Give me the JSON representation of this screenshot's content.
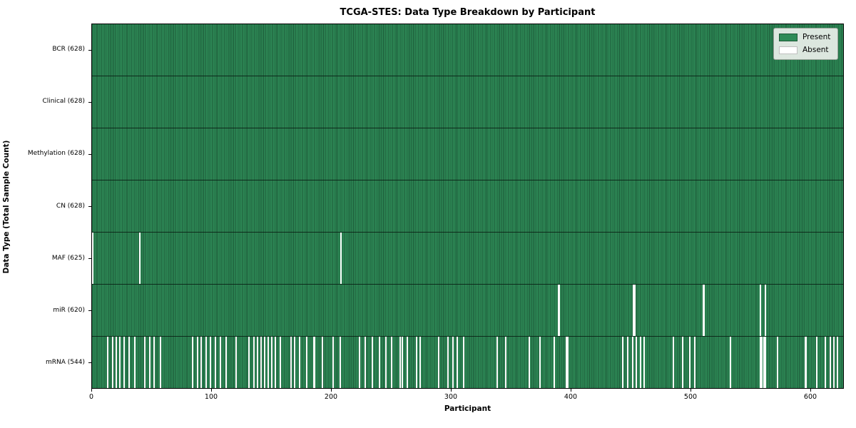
{
  "chart_data": {
    "type": "heatmap",
    "title": "TCGA-STES: Data Type Breakdown by Participant",
    "xlabel": "Participant",
    "ylabel": "Data Type (Total Sample Count)",
    "x_ticks": [
      0,
      100,
      200,
      300,
      400,
      500,
      600
    ],
    "x_range": [
      0,
      628
    ],
    "n_participants": 628,
    "grid": "row-separators",
    "legend_position": "upper-right",
    "legend": [
      {
        "label": "Present",
        "color": "#2e8b57"
      },
      {
        "label": "Absent",
        "color": "#ffffff"
      }
    ],
    "colors": {
      "present_fill": "#2e8b57",
      "present_edge": "#1c5737",
      "absent_fill": "#fbfbfb",
      "row_separator": "rgba(8,28,18,0.85)",
      "frame": "#000000"
    },
    "rows": [
      {
        "name": "BCR",
        "label": "BCR (628)",
        "present_count": 628,
        "absent_count": 0,
        "absent_participants": []
      },
      {
        "name": "Clinical",
        "label": "Clinical (628)",
        "present_count": 628,
        "absent_count": 0,
        "absent_participants": []
      },
      {
        "name": "Methylation",
        "label": "Methylation (628)",
        "present_count": 628,
        "absent_count": 0,
        "absent_participants": []
      },
      {
        "name": "CN",
        "label": "CN (628)",
        "present_count": 628,
        "absent_count": 0,
        "absent_participants": []
      },
      {
        "name": "MAF",
        "label": "MAF (625)",
        "present_count": 625,
        "absent_count": 3,
        "absent_participants": [
          0,
          40,
          208
        ]
      },
      {
        "name": "miR",
        "label": "miR (620)",
        "present_count": 620,
        "absent_count": 8,
        "absent_participants": [
          389,
          390,
          452,
          453,
          510,
          511,
          558,
          562
        ]
      },
      {
        "name": "mRNA",
        "label": "mRNA (544)",
        "present_count": 544,
        "absent_count": 84,
        "absent_participants": [
          13,
          17,
          20,
          23,
          27,
          31,
          36,
          44,
          48,
          52,
          57,
          84,
          88,
          91,
          95,
          99,
          103,
          107,
          112,
          120,
          131,
          135,
          138,
          141,
          144,
          147,
          150,
          153,
          157,
          166,
          169,
          173,
          179,
          185,
          186,
          192,
          201,
          207,
          223,
          228,
          234,
          240,
          245,
          250,
          257,
          259,
          263,
          271,
          274,
          289,
          297,
          301,
          305,
          310,
          338,
          345,
          365,
          374,
          386,
          396,
          397,
          443,
          447,
          451,
          454,
          458,
          461,
          485,
          493,
          499,
          503,
          533,
          558,
          559,
          561,
          562,
          572,
          595,
          596,
          605,
          612,
          616,
          619,
          622
        ]
      }
    ]
  }
}
